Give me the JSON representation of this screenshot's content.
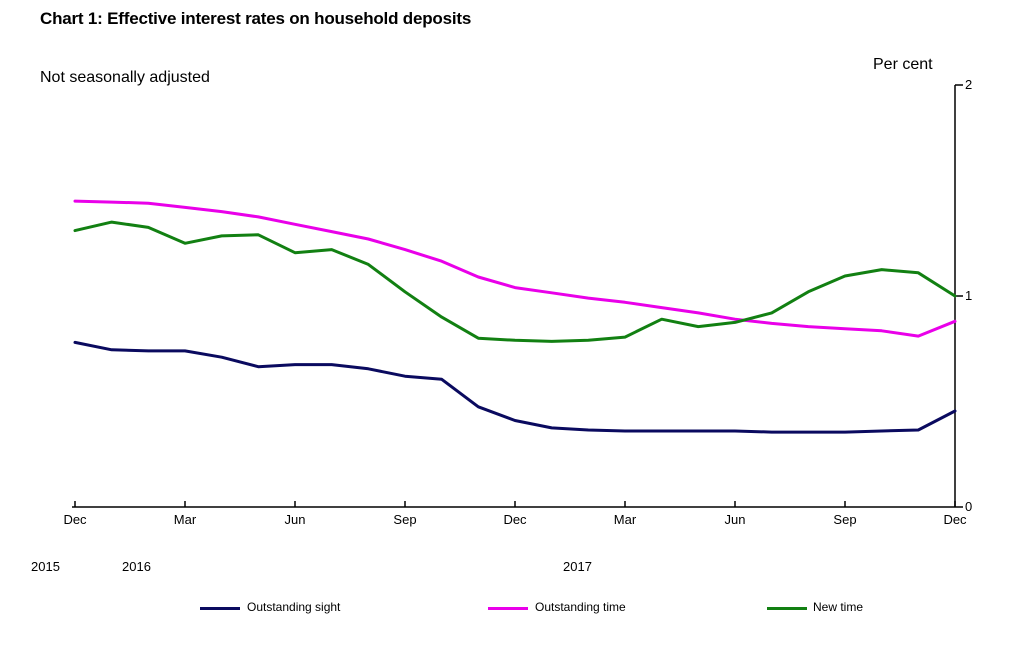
{
  "header": {
    "title": "Chart 1: Effective interest rates on household deposits",
    "note": "Not seasonally adjusted",
    "unit": "Per cent"
  },
  "chart_data": {
    "type": "line",
    "title": "Chart 1: Effective interest rates on household deposits",
    "subtitle": "Not seasonally adjusted",
    "ylabel": "Per cent",
    "ylim": [
      0,
      2
    ],
    "grid": false,
    "legend_position": "bottom",
    "x": [
      "Dec 2015",
      "Jan 2016",
      "Feb 2016",
      "Mar 2016",
      "Apr 2016",
      "May 2016",
      "Jun 2016",
      "Jul 2016",
      "Aug 2016",
      "Sep 2016",
      "Oct 2016",
      "Nov 2016",
      "Dec 2016",
      "Jan 2017",
      "Feb 2017",
      "Mar 2017",
      "Apr 2017",
      "May 2017",
      "Jun 2017",
      "Jul 2017",
      "Aug 2017",
      "Sep 2017",
      "Oct 2017",
      "Nov 2017",
      "Dec 2017"
    ],
    "x_tick_labels": [
      "Dec",
      "Mar",
      "Jun",
      "Sep",
      "Dec",
      "Mar",
      "Jun",
      "Sep",
      "Dec"
    ],
    "year_labels": [
      "2015",
      "2016",
      "2017"
    ],
    "y_tick_labels": [
      "2",
      "1",
      "0"
    ],
    "series": [
      {
        "name": "Outstanding sight",
        "color": "#0a0a5f",
        "values": [
          0.78,
          0.745,
          0.74,
          0.74,
          0.71,
          0.665,
          0.675,
          0.675,
          0.655,
          0.62,
          0.605,
          0.475,
          0.41,
          0.375,
          0.365,
          0.36,
          0.36,
          0.36,
          0.36,
          0.355,
          0.355,
          0.355,
          0.36,
          0.365,
          0.455
        ]
      },
      {
        "name": "Outstanding time",
        "color": "#e900e9",
        "values": [
          1.45,
          1.445,
          1.44,
          1.42,
          1.4,
          1.375,
          1.34,
          1.305,
          1.27,
          1.22,
          1.165,
          1.09,
          1.04,
          1.015,
          0.99,
          0.97,
          0.945,
          0.92,
          0.89,
          0.87,
          0.855,
          0.845,
          0.835,
          0.81,
          0.88
        ]
      },
      {
        "name": "New time",
        "color": "#128012",
        "values": [
          1.31,
          1.35,
          1.325,
          1.25,
          1.285,
          1.29,
          1.205,
          1.22,
          1.15,
          1.02,
          0.9,
          0.8,
          0.79,
          0.785,
          0.79,
          0.805,
          0.89,
          0.855,
          0.875,
          0.92,
          1.02,
          1.095,
          1.125,
          1.11,
          1.0
        ]
      }
    ]
  }
}
